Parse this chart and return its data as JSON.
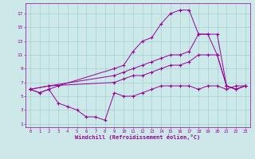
{
  "line1_x": [
    0,
    1,
    2,
    3,
    4,
    5,
    6,
    7,
    8,
    9,
    10,
    11,
    12,
    13,
    14,
    15,
    16,
    17,
    18,
    19,
    20,
    21,
    22,
    23
  ],
  "line1_y": [
    6.0,
    5.5,
    6.0,
    4.0,
    3.5,
    3.0,
    2.0,
    2.0,
    1.5,
    5.5,
    5.0,
    5.0,
    5.5,
    6.0,
    6.5,
    6.5,
    6.5,
    6.5,
    6.0,
    6.5,
    6.5,
    6.0,
    6.5,
    6.5
  ],
  "line2_x": [
    0,
    1,
    2,
    3,
    9,
    10,
    11,
    12,
    13,
    14,
    15,
    16,
    17,
    18,
    19,
    20,
    21,
    22,
    23
  ],
  "line2_y": [
    6.0,
    5.5,
    6.0,
    6.5,
    9.0,
    9.5,
    11.5,
    13.0,
    13.5,
    15.5,
    17.0,
    17.5,
    17.5,
    14.0,
    14.0,
    11.0,
    6.5,
    6.0,
    6.5
  ],
  "line3_x": [
    0,
    2,
    9,
    10,
    11,
    12,
    13,
    14,
    15,
    16,
    17,
    18,
    19,
    20,
    21,
    22,
    23
  ],
  "line3_y": [
    6.0,
    6.5,
    8.0,
    8.5,
    9.0,
    9.5,
    10.0,
    10.5,
    11.0,
    11.0,
    11.5,
    14.0,
    14.0,
    14.0,
    6.5,
    6.0,
    6.5
  ],
  "line4_x": [
    0,
    2,
    9,
    10,
    11,
    12,
    13,
    14,
    15,
    16,
    17,
    18,
    19,
    20,
    21,
    22,
    23
  ],
  "line4_y": [
    6.0,
    6.5,
    7.0,
    7.5,
    8.0,
    8.0,
    8.5,
    9.0,
    9.5,
    9.5,
    10.0,
    11.0,
    11.0,
    11.0,
    6.5,
    6.0,
    6.5
  ],
  "bg_color": "#cce8e8",
  "line_color": "#990099",
  "grid_color": "#99cccc",
  "xlabel": "Windchill (Refroidissement éolien,°C)",
  "yticks": [
    1,
    3,
    5,
    7,
    9,
    11,
    13,
    15,
    17
  ],
  "xticks": [
    0,
    1,
    2,
    3,
    4,
    5,
    6,
    7,
    8,
    9,
    10,
    11,
    12,
    13,
    14,
    15,
    16,
    17,
    18,
    19,
    20,
    21,
    22,
    23
  ],
  "ylim": [
    0.5,
    18.5
  ],
  "xlim": [
    -0.5,
    23.5
  ]
}
